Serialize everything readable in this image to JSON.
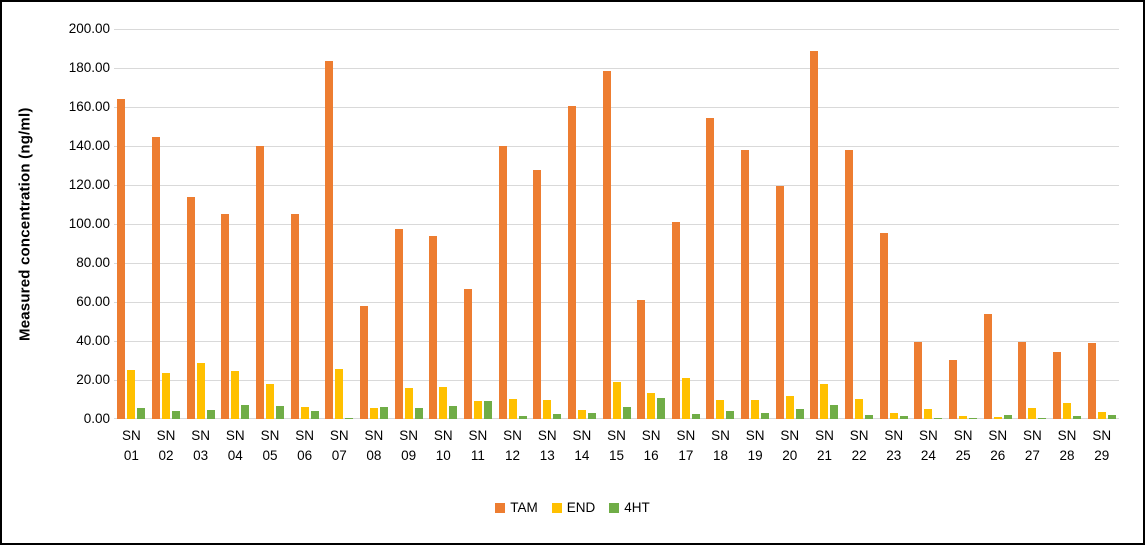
{
  "chart_data": {
    "type": "bar",
    "title": "",
    "xlabel": "",
    "ylabel": "Measured concentration (ng/ml)",
    "ylim": [
      0,
      200
    ],
    "ytick_step": 20,
    "ytick_decimals": 2,
    "grid": "horizontal",
    "legend_position": "bottom-center",
    "categories": [
      "SN 01",
      "SN 02",
      "SN 03",
      "SN 04",
      "SN 05",
      "SN 06",
      "SN 07",
      "SN 08",
      "SN 09",
      "SN 10",
      "SN 11",
      "SN 12",
      "SN 13",
      "SN 14",
      "SN 15",
      "SN 16",
      "SN 17",
      "SN 18",
      "SN 19",
      "SN 20",
      "SN 21",
      "SN 22",
      "SN 23",
      "SN 24",
      "SN 25",
      "SN 26",
      "SN 27",
      "SN 28",
      "SN 29"
    ],
    "series": [
      {
        "name": "TAM",
        "color": "#ED7D31",
        "values": [
          164,
          144.5,
          114,
          105,
          140,
          105,
          183.5,
          58,
          97.5,
          94,
          66.5,
          140,
          127.5,
          160.5,
          178.5,
          61,
          101,
          154.5,
          138,
          119.5,
          188.5,
          138,
          95.5,
          39.5,
          30,
          54,
          39.5,
          34.5,
          39
        ]
      },
      {
        "name": "END",
        "color": "#FFC000",
        "values": [
          25,
          23.5,
          28.5,
          24.5,
          18,
          6,
          25.5,
          5.5,
          16,
          16.5,
          9,
          10.5,
          9.5,
          4.5,
          19,
          13.5,
          21,
          9.5,
          9.5,
          12,
          18,
          10.5,
          3,
          5,
          1.7,
          1,
          5.7,
          8,
          3.4
        ]
      },
      {
        "name": "4HT",
        "color": "#70AD47",
        "values": [
          5.5,
          4,
          4.5,
          7,
          6.5,
          4,
          0.5,
          6.3,
          5.5,
          6.5,
          9,
          1.7,
          2.4,
          3.2,
          6,
          11,
          2.6,
          4.3,
          3,
          5,
          7,
          2,
          1.5,
          0.7,
          0.3,
          1.8,
          0.4,
          1.4,
          1.8
        ]
      }
    ]
  },
  "colors": {
    "gridline": "#D9D9D9",
    "axis_line": "#D9D9D9",
    "axis_text": "#000000",
    "frame_border": "#000000",
    "background": "#FFFFFF"
  }
}
